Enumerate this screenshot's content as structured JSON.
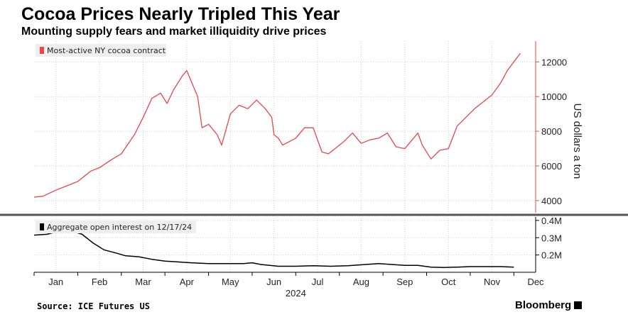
{
  "title": "Cocoa Prices Nearly Tripled This Year",
  "subtitle": "Mounting supply fears and market illiquidity drive prices",
  "source": "Source: ICE Futures US",
  "brand": "Bloomberg",
  "colors": {
    "price": "#e8474c",
    "oi": "#000000",
    "grid": "#d0d0d0",
    "axis_price": "#e8474c",
    "divider": "#555555"
  },
  "chart_data": [
    {
      "type": "line",
      "legend": "Most-active NY cocoa contract",
      "ylabel": "US dollars a ton",
      "yticks": [
        4000,
        6000,
        8000,
        10000,
        12000
      ],
      "ylim": [
        3300,
        13200
      ],
      "xlim": [
        0,
        11.5
      ],
      "grid": true,
      "series": [
        {
          "name": "Most-active NY cocoa contract",
          "x": [
            0,
            0.2,
            0.5,
            0.8,
            1.0,
            1.3,
            1.5,
            1.8,
            2.0,
            2.3,
            2.5,
            2.7,
            2.9,
            3.05,
            3.2,
            3.4,
            3.5,
            3.6,
            3.75,
            3.85,
            4.0,
            4.2,
            4.3,
            4.5,
            4.7,
            4.9,
            5.1,
            5.3,
            5.45,
            5.5,
            5.6,
            5.7,
            5.85,
            6.0,
            6.2,
            6.4,
            6.5,
            6.6,
            6.75,
            6.9,
            7.1,
            7.3,
            7.5,
            7.7,
            7.9,
            8.1,
            8.3,
            8.5,
            8.7,
            8.8,
            8.9,
            9.1,
            9.3,
            9.5,
            9.7,
            9.9,
            10.1,
            10.3,
            10.5,
            10.7,
            10.85,
            11.0,
            11.15
          ],
          "values": [
            4200,
            4250,
            4600,
            4900,
            5100,
            5700,
            5900,
            6400,
            6700,
            7800,
            8800,
            9900,
            10200,
            9600,
            10400,
            11200,
            11500,
            10900,
            10000,
            8200,
            8400,
            7800,
            7200,
            9000,
            9500,
            9300,
            9800,
            9300,
            8800,
            7800,
            7600,
            7200,
            7400,
            7600,
            8200,
            8200,
            7500,
            6800,
            6700,
            7000,
            7400,
            7900,
            7300,
            7500,
            7600,
            7900,
            7100,
            7000,
            7600,
            7900,
            7200,
            6400,
            6900,
            7000,
            8300,
            8800,
            9300,
            9700,
            10100,
            10800,
            11500,
            12000,
            12500
          ]
        }
      ]
    },
    {
      "type": "line",
      "legend": "Aggregate open interest on 12/17/24",
      "yticks": [
        "0.2M",
        "0.3M",
        "0.4M"
      ],
      "ytick_values": [
        0.2,
        0.3,
        0.4
      ],
      "ylim": [
        0.1,
        0.42
      ],
      "xlim": [
        0,
        11.5
      ],
      "xticks": [
        "Jan",
        "Feb",
        "Mar",
        "Apr",
        "May",
        "Jun",
        "Jul",
        "Aug",
        "Sep",
        "Oct",
        "Nov",
        "Dec"
      ],
      "year_label": "2024",
      "series": [
        {
          "name": "Aggregate open interest on 12/17/24",
          "x": [
            0,
            0.3,
            0.6,
            0.9,
            1.1,
            1.35,
            1.6,
            1.9,
            2.1,
            2.4,
            2.7,
            3.0,
            3.3,
            3.6,
            4.0,
            4.4,
            4.8,
            5.0,
            5.2,
            5.6,
            6.0,
            6.4,
            6.8,
            7.2,
            7.6,
            7.9,
            8.2,
            8.5,
            8.8,
            9.1,
            9.4,
            9.7,
            10.0,
            10.3,
            10.7,
            11.0
          ],
          "values": [
            0.315,
            0.32,
            0.34,
            0.335,
            0.32,
            0.27,
            0.23,
            0.21,
            0.195,
            0.19,
            0.175,
            0.165,
            0.16,
            0.155,
            0.15,
            0.15,
            0.15,
            0.155,
            0.145,
            0.135,
            0.135,
            0.138,
            0.135,
            0.138,
            0.145,
            0.15,
            0.145,
            0.14,
            0.14,
            0.13,
            0.128,
            0.13,
            0.133,
            0.133,
            0.133,
            0.13
          ]
        }
      ]
    }
  ]
}
